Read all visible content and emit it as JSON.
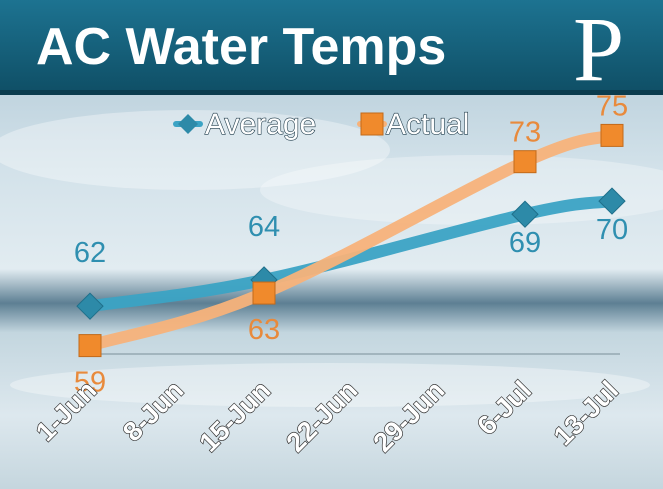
{
  "header": {
    "title": "AC Water Temps",
    "logo_letter": "P"
  },
  "colors": {
    "header_bg": "#17617a",
    "average": "#3ba3c4",
    "actual": "#f7b27a",
    "average_marker": "#2d8aa8",
    "actual_marker": "#f08a2c"
  },
  "chart_data": {
    "type": "line",
    "categories": [
      "1-Jun",
      "8-Jun",
      "15-Jun",
      "22-Jun",
      "29-Jun",
      "6-Jul",
      "13-Jul"
    ],
    "legend_position": "top",
    "series": [
      {
        "name": "Average",
        "points": [
          {
            "x": "1-Jun",
            "y": 62
          },
          {
            "x": "15-Jun",
            "y": 64
          },
          {
            "x": "6-Jul",
            "y": 69
          },
          {
            "x": "13-Jul",
            "y": 70
          }
        ]
      },
      {
        "name": "Actual",
        "points": [
          {
            "x": "1-Jun",
            "y": 59
          },
          {
            "x": "15-Jun",
            "y": 63
          },
          {
            "x": "6-Jul",
            "y": 73
          },
          {
            "x": "13-Jul",
            "y": 75
          }
        ]
      }
    ],
    "ylim": [
      56,
      78
    ],
    "grid": false
  }
}
